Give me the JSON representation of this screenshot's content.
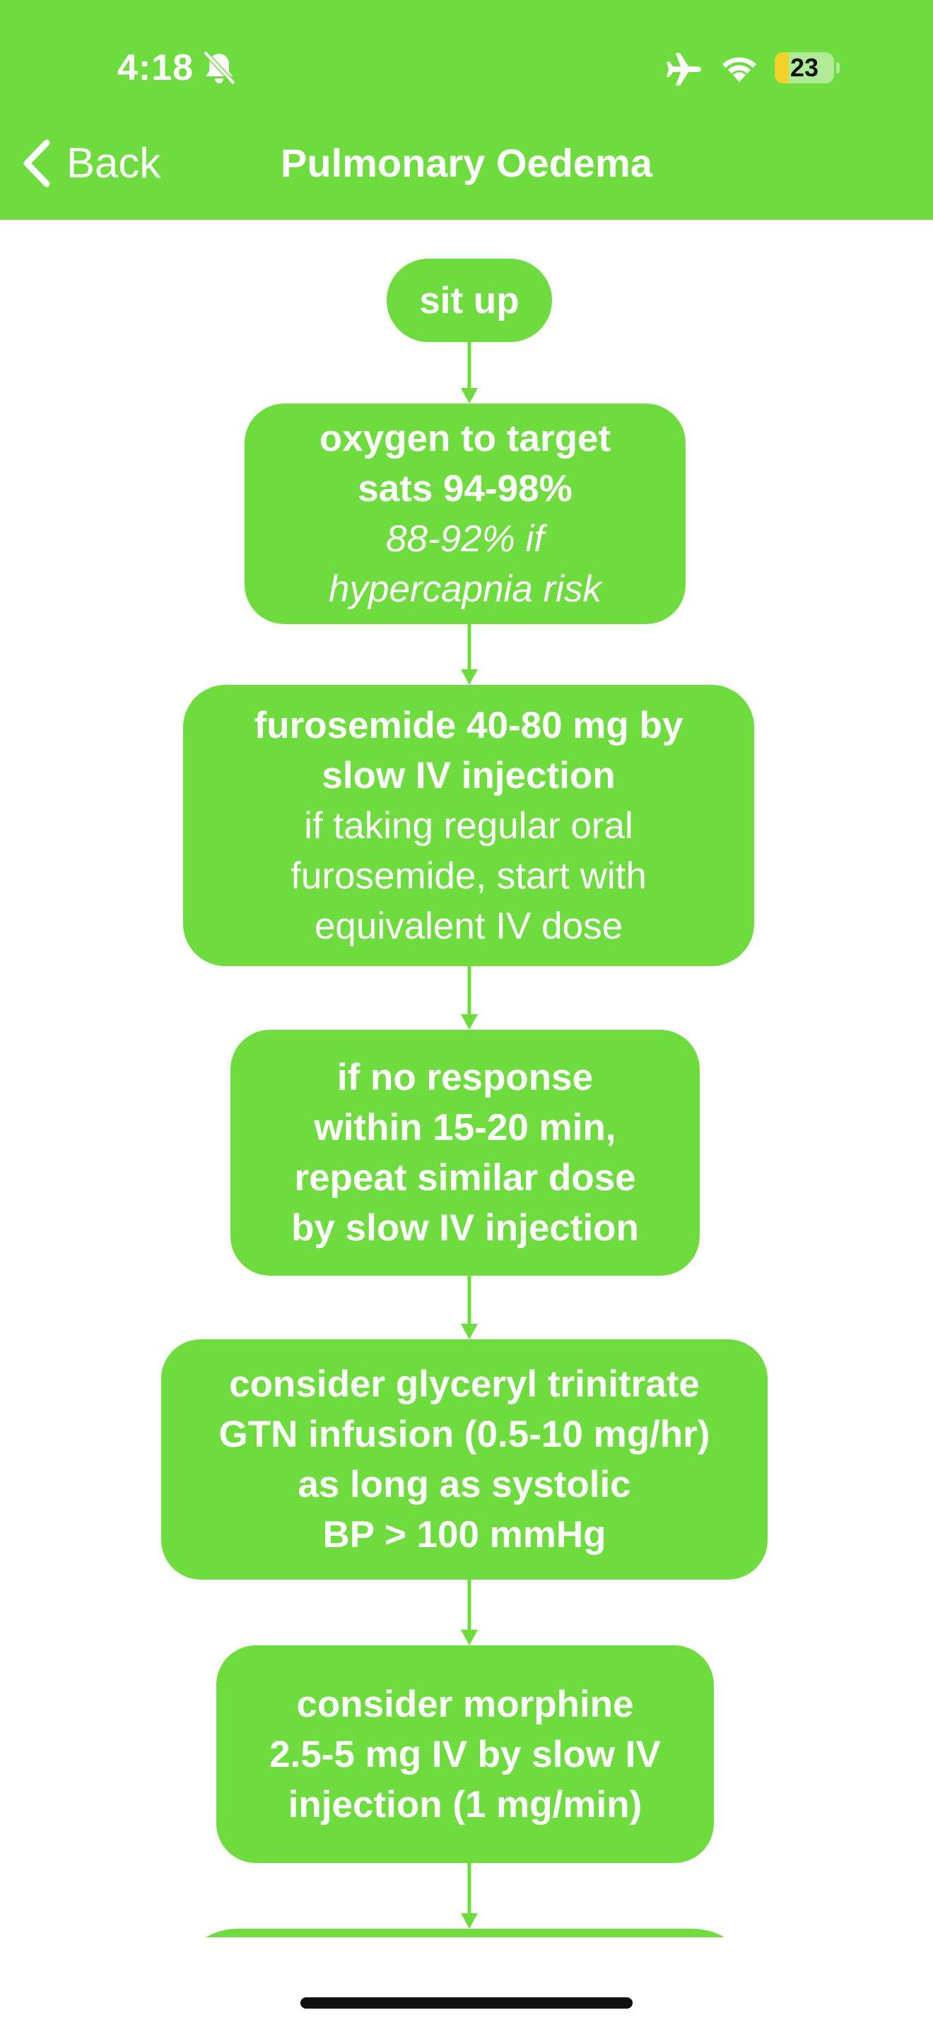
{
  "status_bar": {
    "time": "4:18",
    "battery_level": "23",
    "icons": [
      "bell-slash-icon",
      "airplane-icon",
      "wifi-icon",
      "battery-icon"
    ]
  },
  "nav": {
    "back_label": "Back",
    "title": "Pulmonary Oedema"
  },
  "colors": {
    "accent": "#6edc3f",
    "text": "#ffffff"
  },
  "flow": [
    {
      "lines": [
        {
          "style": "b",
          "text": "sit up"
        }
      ]
    },
    {
      "lines": [
        {
          "style": "b",
          "text": "oxygen to target"
        },
        {
          "style": "b",
          "text": "sats 94-98%"
        },
        {
          "style": "i",
          "text": "88-92% if"
        },
        {
          "style": "i",
          "text": "hypercapnia risk"
        }
      ]
    },
    {
      "lines": [
        {
          "style": "b",
          "text": "furosemide 40-80 mg by"
        },
        {
          "style": "b",
          "text": "slow IV injection"
        },
        {
          "style": "n",
          "text": "if taking regular oral"
        },
        {
          "style": "n",
          "text": "furosemide, start with"
        },
        {
          "style": "n",
          "text": "equivalent IV dose"
        }
      ]
    },
    {
      "lines": [
        {
          "style": "b",
          "text": "if no response"
        },
        {
          "style": "b",
          "text": "within 15-20 min,"
        },
        {
          "style": "b",
          "text": "repeat similar dose"
        },
        {
          "style": "b",
          "text": "by slow IV injection"
        }
      ]
    },
    {
      "lines": [
        {
          "style": "b",
          "text": "consider glyceryl trinitrate"
        },
        {
          "style": "b",
          "text": "GTN infusion (0.5-10 mg/hr)"
        },
        {
          "style": "b",
          "text": "as long as systolic"
        },
        {
          "style": "b",
          "text": "BP > 100 mmHg"
        }
      ]
    },
    {
      "lines": [
        {
          "style": "b",
          "text": "consider morphine"
        },
        {
          "style": "b",
          "text": "2.5-5 mg IV by slow IV"
        },
        {
          "style": "b",
          "text": "injection (1 mg/min)"
        }
      ]
    },
    {
      "lines": []
    }
  ]
}
